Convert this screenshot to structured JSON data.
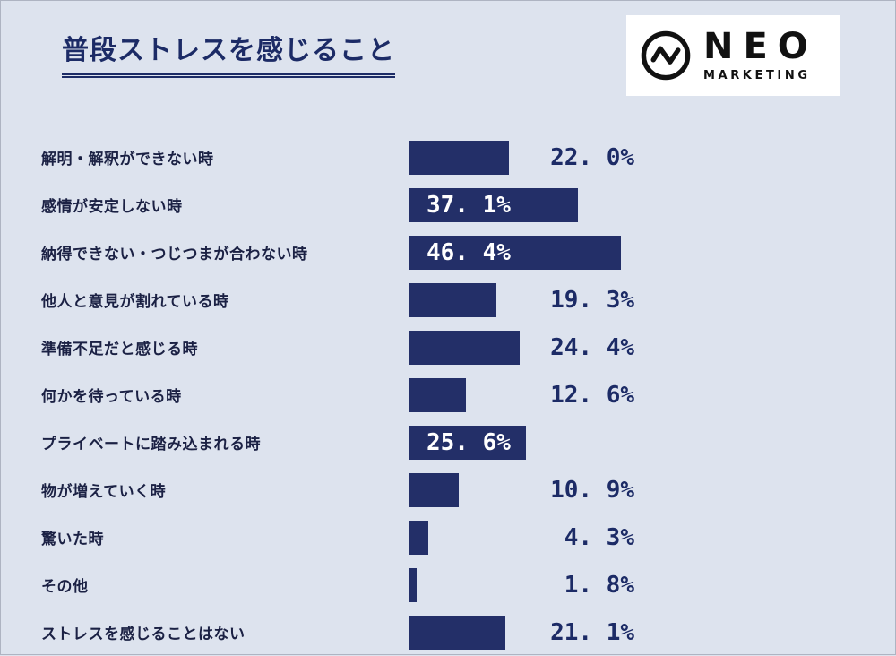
{
  "page": {
    "background": "#dde3ee"
  },
  "title": "普段ストレスを感じること",
  "logo": {
    "name": "NEO",
    "subtitle": "MARKETING"
  },
  "chart_data": {
    "type": "bar",
    "orientation": "horizontal",
    "title": "普段ストレスを感じること",
    "unit": "%",
    "xlim": [
      0,
      100
    ],
    "grid": false,
    "bar_color": "#232f68",
    "categories": [
      "解明・解釈ができない時",
      "感情が安定しない時",
      "納得できない・つじつまが合わない時",
      "他人と意見が割れている時",
      "準備不足だと感じる時",
      "何かを待っている時",
      "プライベートに踏み込まれる時",
      "物が増えていく時",
      "驚いた時",
      "その他",
      "ストレスを感じることはない"
    ],
    "values": [
      22.0,
      37.1,
      46.4,
      19.3,
      24.4,
      12.6,
      25.6,
      10.9,
      4.3,
      1.8,
      21.1
    ],
    "display_labels": [
      "22. 0%",
      "37. 1%",
      "46. 4%",
      "19. 3%",
      "24. 4%",
      "12. 6%",
      "25. 6%",
      "10. 9%",
      "4. 3%",
      "1. 8%",
      "21. 1%"
    ],
    "label_inside": [
      false,
      true,
      true,
      false,
      false,
      false,
      true,
      false,
      false,
      false,
      false
    ]
  }
}
